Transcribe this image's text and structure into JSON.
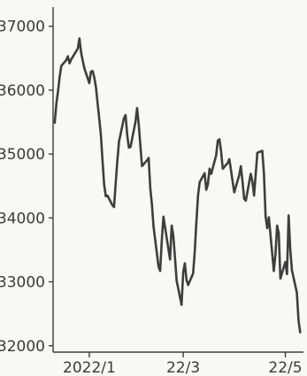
{
  "chart_data": {
    "type": "line",
    "title": "",
    "xlabel": "",
    "ylabel": "",
    "ylim": [
      31900,
      37300
    ],
    "y_ticks": [
      32000,
      33000,
      34000,
      35000,
      36000,
      37000
    ],
    "y_tick_labels": [
      "32000",
      "33000",
      "34000",
      "35000",
      "36000",
      "37000"
    ],
    "x_ticks": [
      {
        "date": "2022-01-03",
        "label": "2022/1"
      },
      {
        "date": "2022-03-01",
        "label": "22/3"
      },
      {
        "date": "2022-05-02",
        "label": "22/5"
      }
    ],
    "xlim": [
      "2021-12-12",
      "2022-05-13"
    ],
    "grid": false,
    "series": [
      {
        "color": "#3e3e3e",
        "points": [
          [
            "2021-12-13",
            35490
          ],
          [
            "2021-12-14",
            35790
          ],
          [
            "2021-12-15",
            35980
          ],
          [
            "2021-12-16",
            36210
          ],
          [
            "2021-12-17",
            36380
          ],
          [
            "2021-12-20",
            36470
          ],
          [
            "2021-12-21",
            36530
          ],
          [
            "2021-12-22",
            36420
          ],
          [
            "2021-12-23",
            36480
          ],
          [
            "2021-12-27",
            36650
          ],
          [
            "2021-12-28",
            36810
          ],
          [
            "2021-12-29",
            36590
          ],
          [
            "2021-12-30",
            36460
          ],
          [
            "2021-12-31",
            36340
          ],
          [
            "2022-01-03",
            36110
          ],
          [
            "2022-01-04",
            36290
          ],
          [
            "2022-01-05",
            36300
          ],
          [
            "2022-01-06",
            36200
          ],
          [
            "2022-01-07",
            36050
          ],
          [
            "2022-01-10",
            35310
          ],
          [
            "2022-01-11",
            34900
          ],
          [
            "2022-01-12",
            34520
          ],
          [
            "2022-01-13",
            34340
          ],
          [
            "2022-01-14",
            34350
          ],
          [
            "2022-01-17",
            34200
          ],
          [
            "2022-01-18",
            34170
          ],
          [
            "2022-01-19",
            34540
          ],
          [
            "2022-01-20",
            34890
          ],
          [
            "2022-01-21",
            35190
          ],
          [
            "2022-01-24",
            35560
          ],
          [
            "2022-01-25",
            35610
          ],
          [
            "2022-01-26",
            35300
          ],
          [
            "2022-01-27",
            35100
          ],
          [
            "2022-01-28",
            35110
          ],
          [
            "2022-01-31",
            35500
          ],
          [
            "2022-02-01",
            35720
          ],
          [
            "2022-02-02",
            35460
          ],
          [
            "2022-02-03",
            35130
          ],
          [
            "2022-02-04",
            34810
          ],
          [
            "2022-02-07",
            34900
          ],
          [
            "2022-02-08",
            34940
          ],
          [
            "2022-02-09",
            34470
          ],
          [
            "2022-02-10",
            34210
          ],
          [
            "2022-02-11",
            33860
          ],
          [
            "2022-02-14",
            33240
          ],
          [
            "2022-02-15",
            33170
          ],
          [
            "2022-02-16",
            33650
          ],
          [
            "2022-02-17",
            34020
          ],
          [
            "2022-02-18",
            33850
          ],
          [
            "2022-02-21",
            33350
          ],
          [
            "2022-02-22",
            33880
          ],
          [
            "2022-02-23",
            33720
          ],
          [
            "2022-02-24",
            33380
          ],
          [
            "2022-02-25",
            33020
          ],
          [
            "2022-02-28",
            32640
          ],
          [
            "2022-03-01",
            33150
          ],
          [
            "2022-03-02",
            33290
          ],
          [
            "2022-03-03",
            33030
          ],
          [
            "2022-03-04",
            32950
          ],
          [
            "2022-03-07",
            33130
          ],
          [
            "2022-03-08",
            33470
          ],
          [
            "2022-03-09",
            33940
          ],
          [
            "2022-03-10",
            34350
          ],
          [
            "2022-03-11",
            34560
          ],
          [
            "2022-03-14",
            34700
          ],
          [
            "2022-03-15",
            34440
          ],
          [
            "2022-03-16",
            34530
          ],
          [
            "2022-03-17",
            34770
          ],
          [
            "2022-03-18",
            34690
          ],
          [
            "2022-03-21",
            34980
          ],
          [
            "2022-03-22",
            35210
          ],
          [
            "2022-03-23",
            35230
          ],
          [
            "2022-03-24",
            35040
          ],
          [
            "2022-03-25",
            34770
          ],
          [
            "2022-03-28",
            34860
          ],
          [
            "2022-03-29",
            34920
          ],
          [
            "2022-03-30",
            34750
          ],
          [
            "2022-03-31",
            34570
          ],
          [
            "2022-04-01",
            34400
          ],
          [
            "2022-04-04",
            34670
          ],
          [
            "2022-04-05",
            34810
          ],
          [
            "2022-04-06",
            34570
          ],
          [
            "2022-04-07",
            34300
          ],
          [
            "2022-04-08",
            34270
          ],
          [
            "2022-04-11",
            34690
          ],
          [
            "2022-04-12",
            34570
          ],
          [
            "2022-04-13",
            34350
          ],
          [
            "2022-04-14",
            34680
          ],
          [
            "2022-04-15",
            35020
          ],
          [
            "2022-04-18",
            35050
          ],
          [
            "2022-04-19",
            34700
          ],
          [
            "2022-04-20",
            34030
          ],
          [
            "2022-04-21",
            33840
          ],
          [
            "2022-04-22",
            34010
          ],
          [
            "2022-04-25",
            33170
          ],
          [
            "2022-04-26",
            33430
          ],
          [
            "2022-04-27",
            33880
          ],
          [
            "2022-04-28",
            33760
          ],
          [
            "2022-04-29",
            33050
          ],
          [
            "2022-05-02",
            33310
          ],
          [
            "2022-05-03",
            33120
          ],
          [
            "2022-05-04",
            34040
          ],
          [
            "2022-05-05",
            33500
          ],
          [
            "2022-05-06",
            33180
          ],
          [
            "2022-05-09",
            32830
          ],
          [
            "2022-05-10",
            32400
          ],
          [
            "2022-05-11",
            32210
          ]
        ]
      }
    ]
  }
}
